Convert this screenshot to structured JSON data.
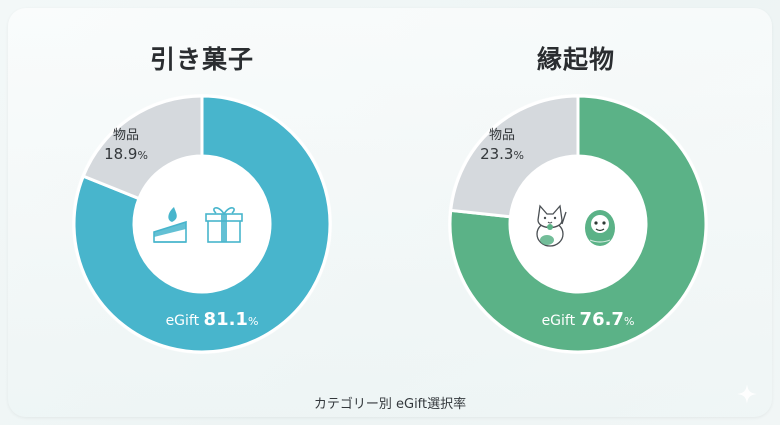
{
  "chart_data": [
    {
      "type": "pie",
      "variant": "donut",
      "title": "引き菓子",
      "icons": [
        "cake-icon",
        "gift-box-icon"
      ],
      "slices": [
        {
          "label": "eGift",
          "value": 81.1,
          "display": "81.1",
          "color": "#48b5cc"
        },
        {
          "label": "物品",
          "value": 18.9,
          "display": "18.9",
          "color": "#d5d9dd"
        }
      ]
    },
    {
      "type": "pie",
      "variant": "donut",
      "title": "縁起物",
      "icons": [
        "maneki-neko-icon",
        "daruma-icon"
      ],
      "slices": [
        {
          "label": "eGift",
          "value": 76.7,
          "display": "76.7",
          "color": "#5bb287"
        },
        {
          "label": "物品",
          "value": 23.3,
          "display": "23.3",
          "color": "#d5d9dd"
        }
      ]
    }
  ],
  "unit": "%",
  "caption": "カテゴリー別 eGift選択率"
}
